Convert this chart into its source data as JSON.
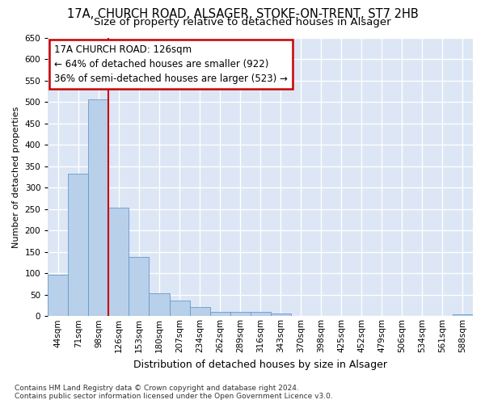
{
  "title1": "17A, CHURCH ROAD, ALSAGER, STOKE-ON-TRENT, ST7 2HB",
  "title2": "Size of property relative to detached houses in Alsager",
  "xlabel": "Distribution of detached houses by size in Alsager",
  "ylabel": "Number of detached properties",
  "categories": [
    "44sqm",
    "71sqm",
    "98sqm",
    "126sqm",
    "153sqm",
    "180sqm",
    "207sqm",
    "234sqm",
    "262sqm",
    "289sqm",
    "316sqm",
    "343sqm",
    "370sqm",
    "398sqm",
    "425sqm",
    "452sqm",
    "479sqm",
    "506sqm",
    "534sqm",
    "561sqm",
    "588sqm"
  ],
  "values": [
    97,
    333,
    505,
    254,
    138,
    53,
    37,
    21,
    10,
    10,
    10,
    6,
    0,
    0,
    0,
    0,
    0,
    0,
    0,
    0,
    5
  ],
  "bar_color": "#b8d0ea",
  "bar_edge_color": "#6699cc",
  "vline_color": "#cc0000",
  "vline_x": 2.5,
  "annotation_line1": "17A CHURCH ROAD: 126sqm",
  "annotation_line2": "← 64% of detached houses are smaller (922)",
  "annotation_line3": "36% of semi-detached houses are larger (523) →",
  "annotation_box_color": "#cc0000",
  "annotation_bg": "#ffffff",
  "ylim_max": 650,
  "yticks": [
    0,
    50,
    100,
    150,
    200,
    250,
    300,
    350,
    400,
    450,
    500,
    550,
    600,
    650
  ],
  "footer1": "Contains HM Land Registry data © Crown copyright and database right 2024.",
  "footer2": "Contains public sector information licensed under the Open Government Licence v3.0.",
  "bg_color": "#dce6f5",
  "title1_fontsize": 10.5,
  "title2_fontsize": 9.5,
  "xlabel_fontsize": 9,
  "ylabel_fontsize": 8,
  "tick_fontsize": 7.5,
  "footer_fontsize": 6.5,
  "ann_fontsize": 8.5
}
